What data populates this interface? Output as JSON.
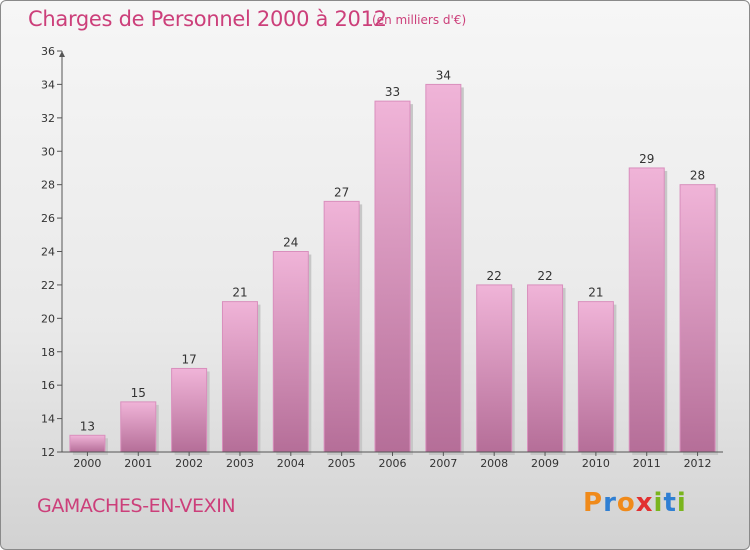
{
  "title": "Charges de Personnel 2000 à 2012",
  "subtitle": "(en milliers d'€)",
  "commune": "GAMACHES-EN-VEXIN",
  "logo": {
    "letters": [
      "P",
      "r",
      "o",
      "x",
      "i",
      "t",
      "i"
    ],
    "colors": [
      "#f08a1a",
      "#2f7fd3",
      "#f08a1a",
      "#e23030",
      "#7ab51d",
      "#2f7fd3",
      "#7ab51d"
    ]
  },
  "colors": {
    "bar_light": "#f0b4d8",
    "bar_dark": "#b56e98",
    "accent": "#cc3f7a"
  },
  "chart_data": {
    "type": "bar",
    "categories": [
      "2000",
      "2001",
      "2002",
      "2003",
      "2004",
      "2005",
      "2006",
      "2007",
      "2008",
      "2009",
      "2010",
      "2011",
      "2012"
    ],
    "values": [
      13,
      15,
      17,
      21,
      24,
      27,
      33,
      34,
      22,
      22,
      21,
      29,
      28
    ],
    "data_labels": [
      "13",
      "15",
      "17",
      "21",
      "24",
      "27",
      "33",
      "34",
      "22",
      "22",
      "21",
      "29",
      "28"
    ],
    "ylim": [
      12,
      36
    ],
    "yticks": [
      "12",
      "14",
      "16",
      "18",
      "20",
      "22",
      "24",
      "26",
      "28",
      "30",
      "32",
      "34",
      "36"
    ],
    "grid": false,
    "xlabel": "",
    "ylabel": ""
  }
}
